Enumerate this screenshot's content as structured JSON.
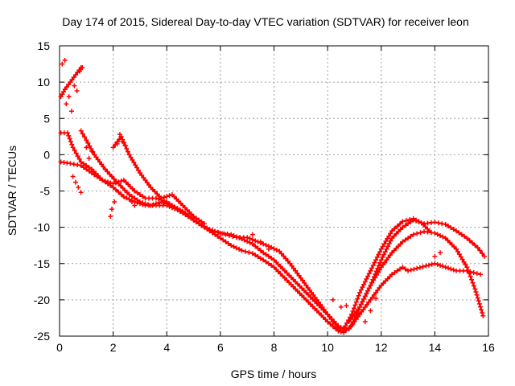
{
  "chart_data": {
    "type": "scatter",
    "title": "Day 174 of 2015, Sidereal Day-to-day VTEC variation (SDTVAR) for receiver leon",
    "xlabel": "GPS time / hours",
    "ylabel": "SDTVAR / TECUs",
    "xlim": [
      0,
      16
    ],
    "ylim": [
      -25,
      15
    ],
    "xticks": [
      "0",
      "2",
      "4",
      "6",
      "8",
      "10",
      "12",
      "14",
      "16"
    ],
    "yticks": [
      "15",
      "10",
      "5",
      "0",
      "-5",
      "-10",
      "-15",
      "-20",
      "-25"
    ],
    "grid": true,
    "marker": "plus",
    "color": "#ff0000",
    "series": [
      {
        "name": "s1",
        "points": [
          [
            0.05,
            -1
          ],
          [
            0.4,
            -1.2
          ],
          [
            0.8,
            -1.5
          ],
          [
            1.2,
            -2.5
          ],
          [
            1.6,
            -3.5
          ],
          [
            2.0,
            -4.5
          ],
          [
            2.4,
            -5.8
          ],
          [
            2.8,
            -6.5
          ],
          [
            3.2,
            -7
          ],
          [
            3.6,
            -7
          ],
          [
            4.0,
            -7
          ],
          [
            4.4,
            -7.6
          ],
          [
            4.8,
            -8.5
          ],
          [
            5.2,
            -9.5
          ],
          [
            5.6,
            -10.5
          ],
          [
            6.0,
            -11.5
          ],
          [
            6.4,
            -12.5
          ],
          [
            6.8,
            -13.2
          ],
          [
            7.2,
            -13.6
          ],
          [
            7.6,
            -14.5
          ],
          [
            8.0,
            -15.5
          ],
          [
            8.4,
            -17
          ],
          [
            8.8,
            -18.5
          ],
          [
            9.2,
            -20
          ],
          [
            9.6,
            -21.5
          ],
          [
            10.0,
            -23
          ],
          [
            10.4,
            -24.3
          ],
          [
            10.6,
            -24.5
          ],
          [
            10.9,
            -23.5
          ],
          [
            11.2,
            -21
          ],
          [
            11.6,
            -18
          ],
          [
            12.0,
            -15.5
          ],
          [
            12.4,
            -13.5
          ],
          [
            12.8,
            -12
          ],
          [
            13.2,
            -11
          ],
          [
            13.6,
            -10.6
          ],
          [
            14.0,
            -10.8
          ],
          [
            14.4,
            -11.5
          ],
          [
            14.8,
            -13
          ],
          [
            15.2,
            -15.5
          ],
          [
            15.5,
            -18.5
          ],
          [
            15.8,
            -22.2
          ]
        ]
      },
      {
        "name": "s2",
        "points": [
          [
            0.05,
            3
          ],
          [
            0.3,
            3
          ],
          [
            0.5,
            1
          ],
          [
            0.8,
            -1
          ],
          [
            1.2,
            -2
          ],
          [
            1.6,
            -3.5
          ],
          [
            2.0,
            -4
          ],
          [
            2.4,
            -3.5
          ],
          [
            2.8,
            -5
          ],
          [
            3.2,
            -6
          ],
          [
            3.6,
            -6
          ],
          [
            4.0,
            -6.5
          ],
          [
            4.4,
            -7.5
          ],
          [
            4.8,
            -8.5
          ],
          [
            5.2,
            -9.5
          ],
          [
            5.6,
            -10.3
          ],
          [
            6.0,
            -10.8
          ],
          [
            6.4,
            -11
          ],
          [
            6.8,
            -11.6
          ],
          [
            7.2,
            -12.3
          ],
          [
            7.6,
            -13.5
          ],
          [
            8.0,
            -14.5
          ],
          [
            8.4,
            -16
          ],
          [
            8.8,
            -17.5
          ],
          [
            9.2,
            -19
          ],
          [
            9.6,
            -20.5
          ],
          [
            10.0,
            -22
          ],
          [
            10.4,
            -23.6
          ],
          [
            10.6,
            -24
          ],
          [
            10.9,
            -22
          ],
          [
            11.2,
            -19
          ],
          [
            11.6,
            -16
          ],
          [
            12.0,
            -13
          ],
          [
            12.4,
            -10.5
          ],
          [
            12.8,
            -9.2
          ],
          [
            13.2,
            -8.8
          ],
          [
            13.5,
            -9.4
          ],
          [
            13.8,
            -10.5
          ]
        ]
      },
      {
        "name": "s3",
        "points": [
          [
            0.8,
            3.3
          ],
          [
            1.0,
            2
          ],
          [
            1.3,
            0
          ],
          [
            1.7,
            -2
          ],
          [
            2.2,
            -4
          ],
          [
            2.6,
            -5.5
          ],
          [
            3.0,
            -6.5
          ],
          [
            3.4,
            -7
          ],
          [
            3.8,
            -6.5
          ],
          [
            4.2,
            -7
          ],
          [
            4.6,
            -7.8
          ],
          [
            5.0,
            -9
          ],
          [
            5.4,
            -10
          ],
          [
            5.8,
            -10.6
          ],
          [
            6.2,
            -11
          ],
          [
            6.6,
            -11.4
          ],
          [
            7.0,
            -11.4
          ],
          [
            7.4,
            -12
          ],
          [
            7.8,
            -12.6
          ],
          [
            8.2,
            -13.3
          ],
          [
            8.6,
            -15
          ],
          [
            9.0,
            -17
          ],
          [
            9.4,
            -19
          ],
          [
            9.8,
            -21
          ],
          [
            10.2,
            -23
          ],
          [
            10.5,
            -24.3
          ],
          [
            10.8,
            -24
          ],
          [
            11.2,
            -22
          ],
          [
            11.6,
            -20
          ],
          [
            12.0,
            -18
          ],
          [
            12.4,
            -16.5
          ],
          [
            12.8,
            -15.5
          ],
          [
            13.0,
            -16
          ],
          [
            14.0,
            -15
          ],
          [
            14.4,
            -15.5
          ],
          [
            14.8,
            -16
          ],
          [
            15.2,
            -16
          ],
          [
            15.7,
            -16.5
          ]
        ]
      },
      {
        "name": "s4",
        "points": [
          [
            0.05,
            8
          ],
          [
            0.2,
            9
          ],
          [
            0.4,
            10
          ],
          [
            0.6,
            11
          ],
          [
            0.8,
            12
          ]
        ]
      },
      {
        "name": "s5",
        "points": [
          [
            2.0,
            1
          ],
          [
            2.3,
            2.5
          ],
          [
            2.6,
            0
          ],
          [
            3.0,
            -2.5
          ],
          [
            3.4,
            -4.5
          ],
          [
            3.8,
            -6
          ],
          [
            4.2,
            -5.5
          ],
          [
            4.6,
            -7
          ],
          [
            5.0,
            -8.5
          ],
          [
            5.4,
            -9.5
          ]
        ]
      },
      {
        "name": "s6",
        "points": [
          [
            10.8,
            -23
          ],
          [
            11.2,
            -21
          ],
          [
            11.6,
            -18
          ],
          [
            12.0,
            -14.5
          ],
          [
            12.4,
            -11.5
          ],
          [
            12.8,
            -10
          ],
          [
            13.2,
            -9
          ],
          [
            13.6,
            -9.5
          ],
          [
            14.0,
            -9.3
          ],
          [
            14.4,
            -9.6
          ],
          [
            14.8,
            -10.5
          ],
          [
            15.2,
            -11.5
          ],
          [
            15.6,
            -12.8
          ],
          [
            15.85,
            -14
          ]
        ]
      }
    ],
    "scatter_points": [
      [
        0.1,
        12.5
      ],
      [
        0.2,
        13
      ],
      [
        0.25,
        7
      ],
      [
        0.35,
        8
      ],
      [
        0.45,
        6
      ],
      [
        0.55,
        9.5
      ],
      [
        0.65,
        8.8
      ],
      [
        0.75,
        11.5
      ],
      [
        0.85,
        12
      ],
      [
        0.5,
        -3
      ],
      [
        0.6,
        -3.8
      ],
      [
        0.7,
        -4.5
      ],
      [
        0.8,
        -5.2
      ],
      [
        1.0,
        1
      ],
      [
        1.1,
        -0.5
      ],
      [
        1.2,
        0.5
      ],
      [
        1.9,
        -8.5
      ],
      [
        1.95,
        -7.5
      ],
      [
        2.05,
        -6.5
      ],
      [
        2.15,
        1.5
      ],
      [
        2.25,
        2.8
      ],
      [
        2.35,
        1.8
      ],
      [
        2.45,
        1.3
      ],
      [
        2.7,
        -6.5
      ],
      [
        2.8,
        -7
      ],
      [
        10.2,
        -20
      ],
      [
        10.5,
        -21
      ],
      [
        10.7,
        -20.8
      ],
      [
        11.4,
        -23
      ],
      [
        11.6,
        -21.5
      ],
      [
        11.8,
        -19.8
      ],
      [
        14.0,
        -14
      ],
      [
        14.2,
        -13.5
      ],
      [
        7.2,
        -11
      ],
      [
        7.5,
        -12
      ],
      [
        7.8,
        -13
      ]
    ]
  }
}
